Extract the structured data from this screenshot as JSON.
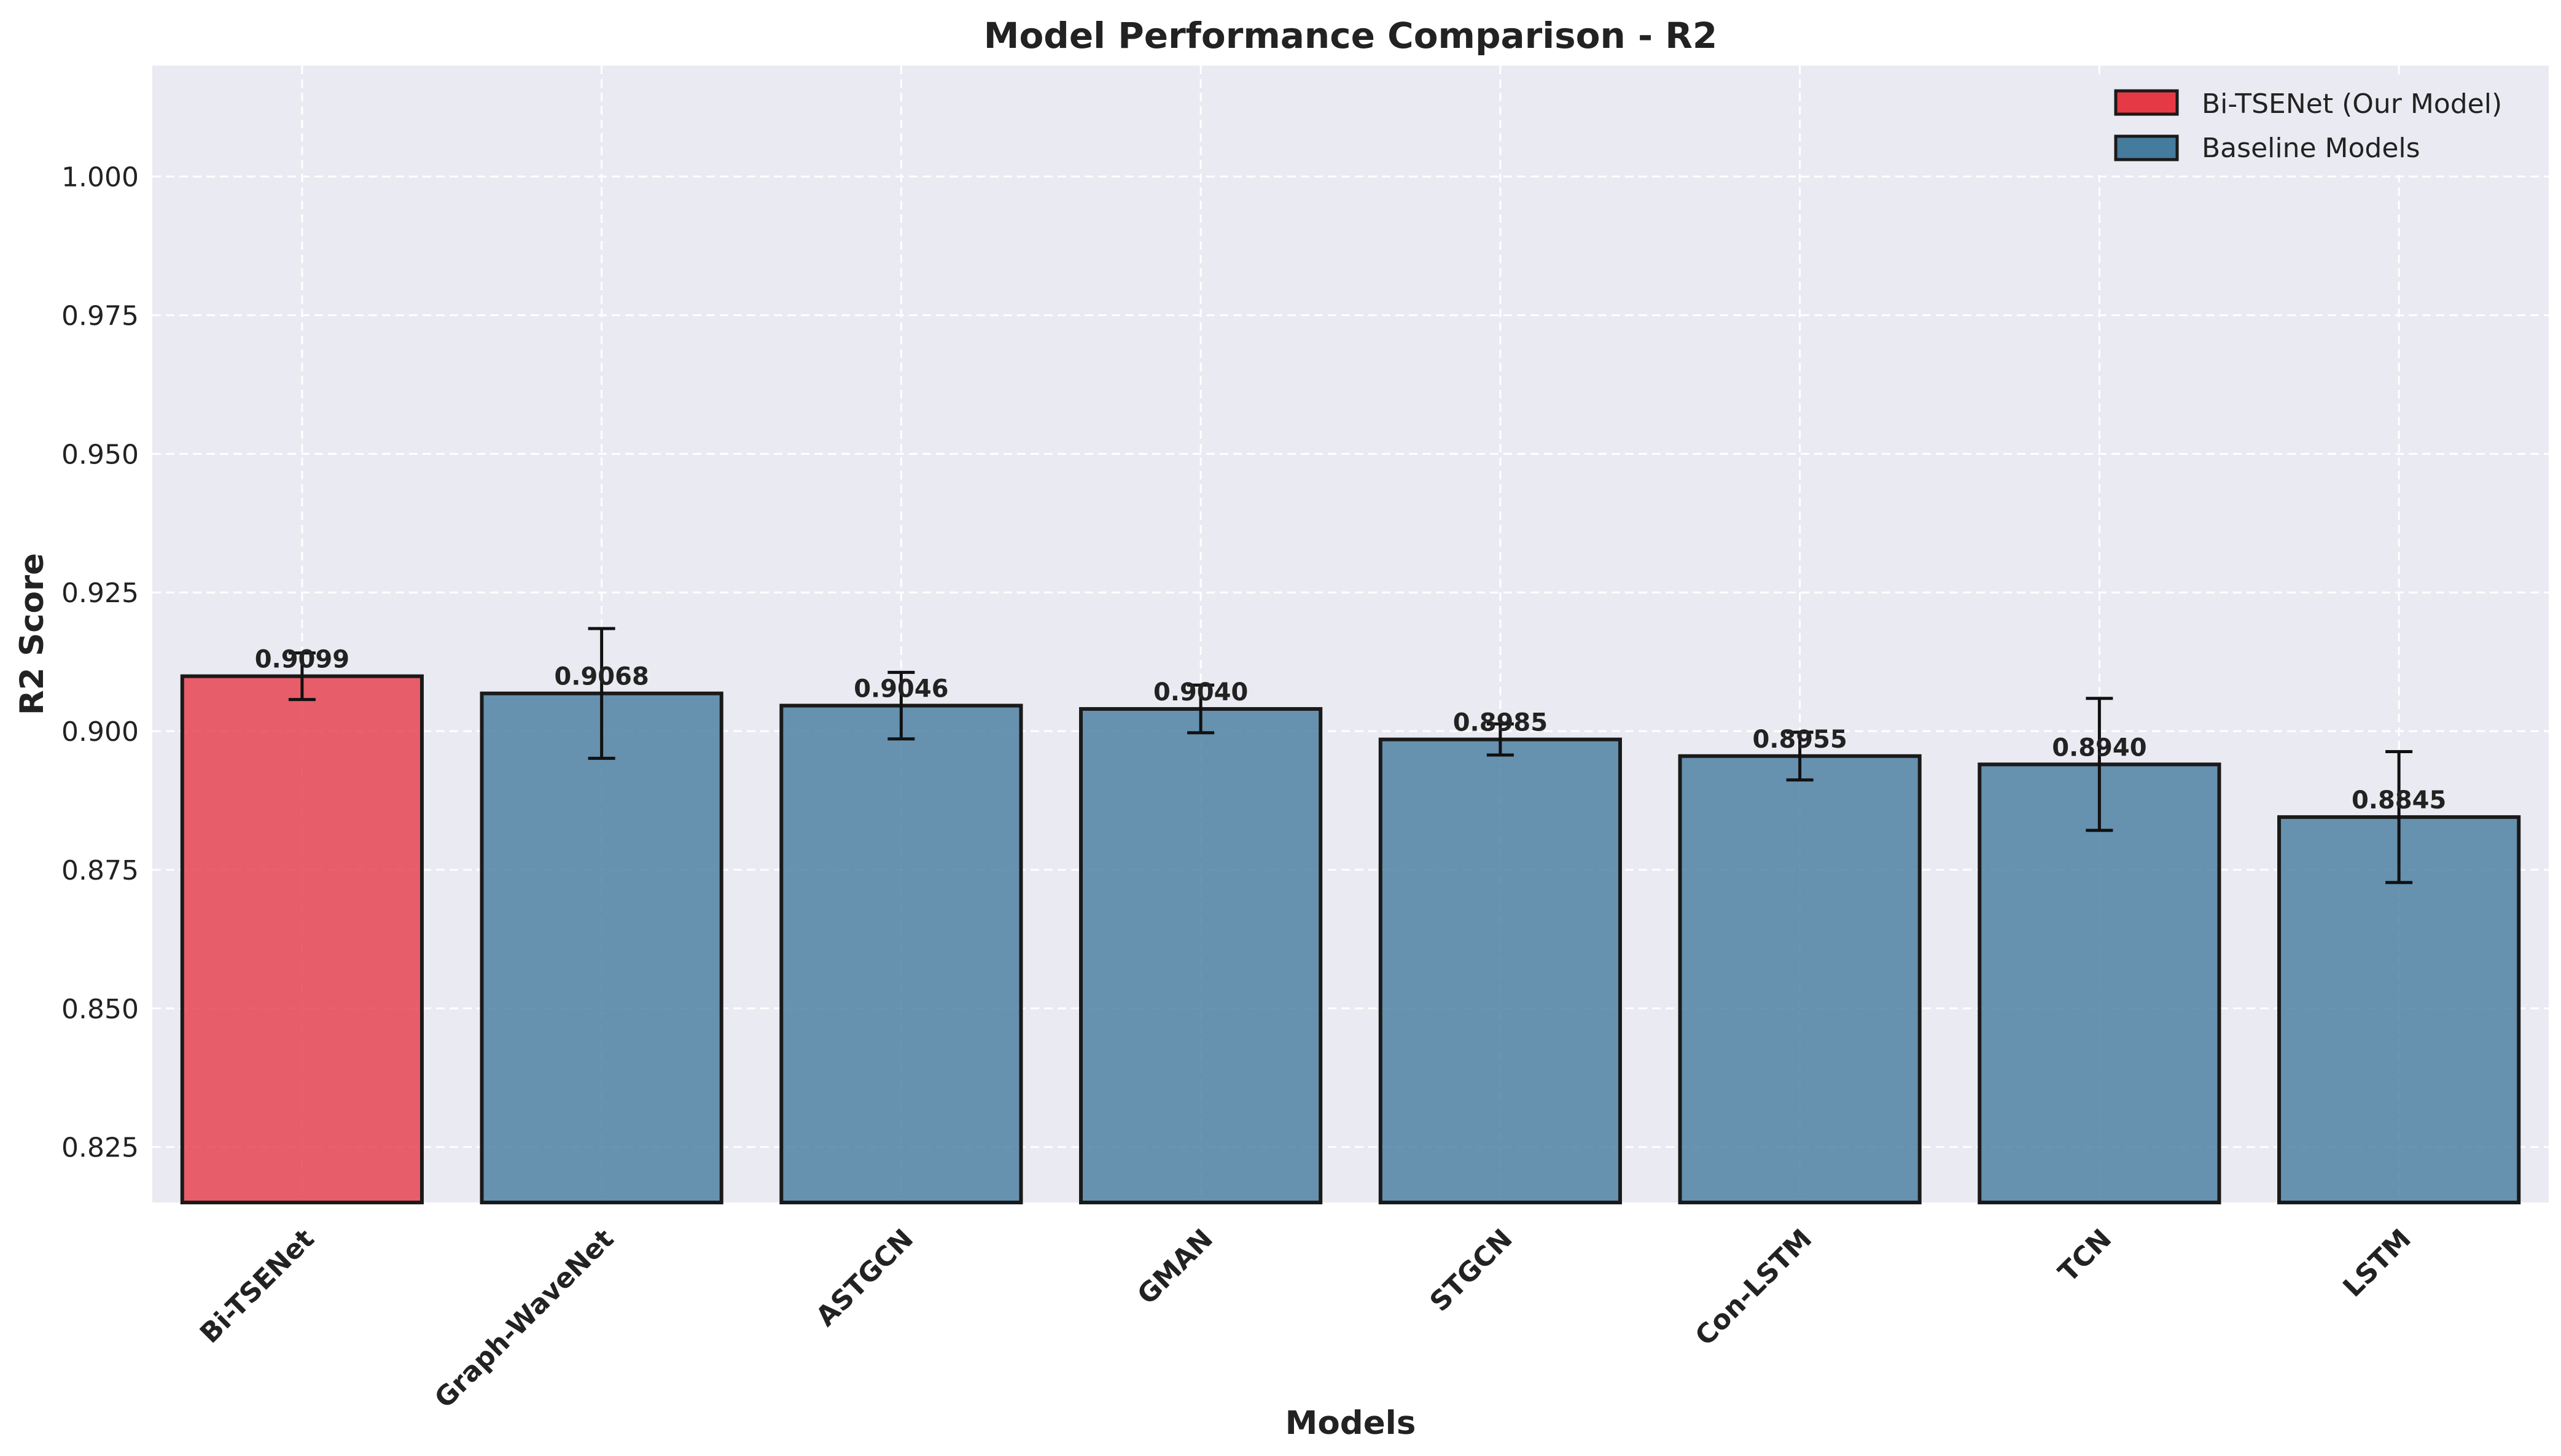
{
  "chart_data": {
    "type": "bar",
    "title": "Model Performance Comparison - R2",
    "xlabel": "Models",
    "ylabel": "R2 Score",
    "categories": [
      "Bi-TSENet",
      "Graph-WaveNet",
      "ASTGCN",
      "GMAN",
      "STGCN",
      "Con-LSTM",
      "TCN",
      "LSTM"
    ],
    "values": [
      0.9099,
      0.9068,
      0.9046,
      0.904,
      0.8985,
      0.8955,
      0.894,
      0.8845
    ],
    "value_labels": [
      "0.9099",
      "0.9068",
      "0.9046",
      "0.9040",
      "0.8985",
      "0.8955",
      "0.8940",
      "0.8845"
    ],
    "errors": [
      0.0042,
      0.0117,
      0.006,
      0.0043,
      0.0028,
      0.0043,
      0.0119,
      0.0118
    ],
    "highlight_index": 0,
    "ylim": [
      0.815,
      1.02
    ],
    "yticks": [
      0.825,
      0.85,
      0.875,
      0.9,
      0.925,
      0.95,
      0.975,
      1.0
    ],
    "ytick_labels": [
      "0.825",
      "0.850",
      "0.875",
      "0.900",
      "0.925",
      "0.950",
      "0.975",
      "1.000"
    ],
    "grid": true,
    "legend_position": "top-right",
    "legend": [
      {
        "label": "Bi-TSENet (Our Model)",
        "color": "#e63946"
      },
      {
        "label": "Baseline Models",
        "color": "#457b9d"
      }
    ],
    "colors": {
      "highlight": "#e63946",
      "baseline": "#457b9d",
      "plot_background": "#eaeaf2",
      "edge": "#1a1a1a"
    }
  }
}
